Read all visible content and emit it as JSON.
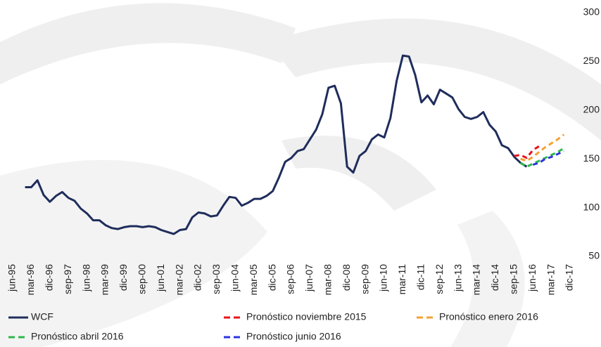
{
  "chart_data": {
    "type": "line",
    "categories": [
      "jun-95",
      null,
      null,
      "mar-96",
      null,
      null,
      "dic-96",
      null,
      null,
      "sep-97",
      null,
      null,
      "jun-98",
      null,
      null,
      "mar-99",
      null,
      null,
      "dic-99",
      null,
      null,
      "sep-00",
      null,
      null,
      "jun-01",
      null,
      null,
      "mar-02",
      null,
      null,
      "dic-02",
      null,
      null,
      "sep-03",
      null,
      null,
      "jun-04",
      null,
      null,
      "mar-05",
      null,
      null,
      "dic-05",
      null,
      null,
      "sep-06",
      null,
      null,
      "jun-07",
      null,
      null,
      "mar-08",
      null,
      null,
      "dic-08",
      null,
      null,
      "sep-09",
      null,
      null,
      "jun-10",
      null,
      null,
      "mar-11",
      null,
      null,
      "dic-11",
      null,
      null,
      "sep-12",
      null,
      null,
      "jun-13",
      null,
      null,
      "mar-14",
      null,
      null,
      "dic-14",
      null,
      null,
      "sep-15",
      null,
      null,
      "jun-16",
      null,
      null,
      "mar-17",
      null,
      null,
      "dic-17"
    ],
    "series": [
      {
        "name": "WCF",
        "color": "#1f2d5c",
        "dash": false,
        "values": [
          null,
          null,
          121,
          121,
          128,
          113,
          106,
          112,
          116,
          110,
          107,
          99,
          94,
          87,
          87,
          82,
          79,
          78,
          80,
          81,
          81,
          80,
          81,
          80,
          77,
          75,
          73,
          77,
          78,
          90,
          95,
          94,
          91,
          92,
          102,
          111,
          110,
          102,
          105,
          109,
          109,
          112,
          117,
          131,
          147,
          151,
          158,
          160,
          170,
          180,
          196,
          223,
          225,
          207,
          142,
          136,
          153,
          158,
          170,
          175,
          172,
          192,
          230,
          256,
          255,
          236,
          208,
          215,
          206,
          221,
          217,
          213,
          201,
          193,
          191,
          193,
          198,
          185,
          178,
          164,
          161,
          152,
          146,
          142,
          null,
          null,
          null,
          null,
          null,
          null,
          null
        ]
      },
      {
        "name": "Pronóstico noviembre 2015",
        "color": "#e8141b",
        "dash": true,
        "values": [
          null,
          null,
          null,
          null,
          null,
          null,
          null,
          null,
          null,
          null,
          null,
          null,
          null,
          null,
          null,
          null,
          null,
          null,
          null,
          null,
          null,
          null,
          null,
          null,
          null,
          null,
          null,
          null,
          null,
          null,
          null,
          null,
          null,
          null,
          null,
          null,
          null,
          null,
          null,
          null,
          null,
          null,
          null,
          null,
          null,
          null,
          null,
          null,
          null,
          null,
          null,
          null,
          null,
          null,
          null,
          null,
          null,
          null,
          null,
          null,
          null,
          null,
          null,
          null,
          null,
          null,
          null,
          null,
          null,
          null,
          null,
          null,
          null,
          null,
          null,
          null,
          null,
          null,
          null,
          null,
          null,
          153,
          154,
          151,
          159,
          163,
          null,
          null,
          null,
          null,
          null
        ]
      },
      {
        "name": "Pronóstico enero 2016",
        "color": "#f5a033",
        "dash": true,
        "values": [
          null,
          null,
          null,
          null,
          null,
          null,
          null,
          null,
          null,
          null,
          null,
          null,
          null,
          null,
          null,
          null,
          null,
          null,
          null,
          null,
          null,
          null,
          null,
          null,
          null,
          null,
          null,
          null,
          null,
          null,
          null,
          null,
          null,
          null,
          null,
          null,
          null,
          null,
          null,
          null,
          null,
          null,
          null,
          null,
          null,
          null,
          null,
          null,
          null,
          null,
          null,
          null,
          null,
          null,
          null,
          null,
          null,
          null,
          null,
          null,
          null,
          null,
          null,
          null,
          null,
          null,
          null,
          null,
          null,
          null,
          null,
          null,
          null,
          null,
          null,
          null,
          null,
          null,
          null,
          null,
          null,
          null,
          150,
          148,
          152,
          157,
          162,
          166,
          170,
          175,
          null
        ]
      },
      {
        "name": "Pronóstico abril 2016",
        "color": "#2db84d",
        "dash": true,
        "values": [
          null,
          null,
          null,
          null,
          null,
          null,
          null,
          null,
          null,
          null,
          null,
          null,
          null,
          null,
          null,
          null,
          null,
          null,
          null,
          null,
          null,
          null,
          null,
          null,
          null,
          null,
          null,
          null,
          null,
          null,
          null,
          null,
          null,
          null,
          null,
          null,
          null,
          null,
          null,
          null,
          null,
          null,
          null,
          null,
          null,
          null,
          null,
          null,
          null,
          null,
          null,
          null,
          null,
          null,
          null,
          null,
          null,
          null,
          null,
          null,
          null,
          null,
          null,
          null,
          null,
          null,
          null,
          null,
          null,
          null,
          null,
          null,
          null,
          null,
          null,
          null,
          null,
          null,
          null,
          null,
          null,
          null,
          146,
          142,
          145,
          148,
          151,
          154,
          157,
          161,
          null
        ]
      },
      {
        "name": "Pronóstico junio 2016",
        "color": "#2b34e0",
        "dash": true,
        "values": [
          null,
          null,
          null,
          null,
          null,
          null,
          null,
          null,
          null,
          null,
          null,
          null,
          null,
          null,
          null,
          null,
          null,
          null,
          null,
          null,
          null,
          null,
          null,
          null,
          null,
          null,
          null,
          null,
          null,
          null,
          null,
          null,
          null,
          null,
          null,
          null,
          null,
          null,
          null,
          null,
          null,
          null,
          null,
          null,
          null,
          null,
          null,
          null,
          null,
          null,
          null,
          null,
          null,
          null,
          null,
          null,
          null,
          null,
          null,
          null,
          null,
          null,
          null,
          null,
          null,
          null,
          null,
          null,
          null,
          null,
          null,
          null,
          null,
          null,
          null,
          null,
          null,
          null,
          null,
          null,
          null,
          null,
          null,
          null,
          144,
          146,
          150,
          152,
          155,
          158,
          null
        ]
      }
    ],
    "ylim": [
      50,
      300
    ],
    "yticks": [
      50,
      100,
      150,
      200,
      250,
      300
    ],
    "grid": false
  }
}
